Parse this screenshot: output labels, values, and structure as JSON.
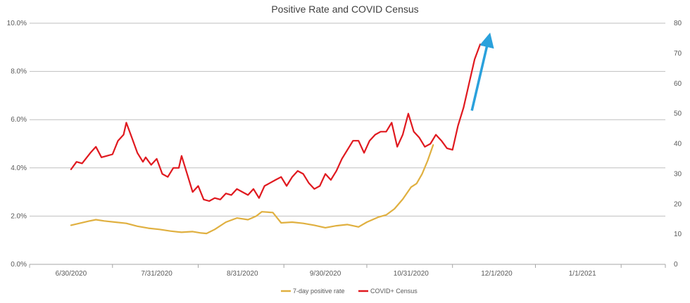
{
  "chart_data": {
    "type": "line",
    "title": "Positive Rate and COVID Census",
    "x_ticks": [
      "6/30/2020",
      "7/31/2020",
      "8/31/2020",
      "9/30/2020",
      "10/31/2020",
      "12/1/2020",
      "1/1/2021"
    ],
    "y_left": {
      "ticks": [
        "0.0%",
        "2.0%",
        "4.0%",
        "6.0%",
        "8.0%",
        "10.0%"
      ],
      "range": [
        0,
        10
      ]
    },
    "y_right": {
      "ticks": [
        "0",
        "10",
        "20",
        "30",
        "40",
        "50",
        "60",
        "70",
        "80"
      ],
      "range": [
        0,
        80
      ]
    },
    "grid": true,
    "legend_position": "bottom",
    "series": [
      {
        "name": "7-day positive rate",
        "axis": "left",
        "color": "#e0b040",
        "points": [
          [
            "2020-06-30",
            1.62
          ],
          [
            "2020-07-03",
            1.7
          ],
          [
            "2020-07-06",
            1.78
          ],
          [
            "2020-07-09",
            1.85
          ],
          [
            "2020-07-12",
            1.8
          ],
          [
            "2020-07-16",
            1.75
          ],
          [
            "2020-07-20",
            1.7
          ],
          [
            "2020-07-24",
            1.58
          ],
          [
            "2020-07-28",
            1.5
          ],
          [
            "2020-08-01",
            1.45
          ],
          [
            "2020-08-05",
            1.38
          ],
          [
            "2020-08-09",
            1.33
          ],
          [
            "2020-08-13",
            1.36
          ],
          [
            "2020-08-16",
            1.3
          ],
          [
            "2020-08-18",
            1.28
          ],
          [
            "2020-08-21",
            1.45
          ],
          [
            "2020-08-25",
            1.75
          ],
          [
            "2020-08-29",
            1.92
          ],
          [
            "2020-09-02",
            1.85
          ],
          [
            "2020-09-05",
            2.0
          ],
          [
            "2020-09-07",
            2.18
          ],
          [
            "2020-09-11",
            2.15
          ],
          [
            "2020-09-14",
            1.72
          ],
          [
            "2020-09-18",
            1.75
          ],
          [
            "2020-09-22",
            1.7
          ],
          [
            "2020-09-26",
            1.62
          ],
          [
            "2020-09-30",
            1.52
          ],
          [
            "2020-10-04",
            1.6
          ],
          [
            "2020-10-08",
            1.65
          ],
          [
            "2020-10-12",
            1.55
          ],
          [
            "2020-10-15",
            1.75
          ],
          [
            "2020-10-19",
            1.95
          ],
          [
            "2020-10-22",
            2.05
          ],
          [
            "2020-10-25",
            2.3
          ],
          [
            "2020-10-28",
            2.7
          ],
          [
            "2020-10-31",
            3.2
          ],
          [
            "2020-11-02",
            3.35
          ],
          [
            "2020-11-04",
            3.75
          ],
          [
            "2020-11-06",
            4.3
          ],
          [
            "2020-11-08",
            4.95
          ]
        ]
      },
      {
        "name": "COVID+ Census",
        "axis": "right",
        "color": "#e0191f",
        "points": [
          [
            "2020-06-30",
            31.5
          ],
          [
            "2020-07-02",
            34
          ],
          [
            "2020-07-04",
            33.5
          ],
          [
            "2020-07-07",
            37
          ],
          [
            "2020-07-09",
            39
          ],
          [
            "2020-07-11",
            35.5
          ],
          [
            "2020-07-13",
            36
          ],
          [
            "2020-07-15",
            36.5
          ],
          [
            "2020-07-17",
            41
          ],
          [
            "2020-07-19",
            43
          ],
          [
            "2020-07-20",
            47
          ],
          [
            "2020-07-22",
            42
          ],
          [
            "2020-07-24",
            37
          ],
          [
            "2020-07-26",
            34
          ],
          [
            "2020-07-27",
            35.5
          ],
          [
            "2020-07-29",
            33
          ],
          [
            "2020-07-31",
            35
          ],
          [
            "2020-08-02",
            30
          ],
          [
            "2020-08-04",
            29
          ],
          [
            "2020-08-06",
            32
          ],
          [
            "2020-08-08",
            32
          ],
          [
            "2020-08-09",
            36
          ],
          [
            "2020-08-11",
            30
          ],
          [
            "2020-08-13",
            24
          ],
          [
            "2020-08-15",
            26
          ],
          [
            "2020-08-17",
            21.5
          ],
          [
            "2020-08-19",
            21
          ],
          [
            "2020-08-21",
            22
          ],
          [
            "2020-08-23",
            21.5
          ],
          [
            "2020-08-25",
            23.5
          ],
          [
            "2020-08-27",
            23
          ],
          [
            "2020-08-29",
            25
          ],
          [
            "2020-08-31",
            24
          ],
          [
            "2020-09-02",
            23
          ],
          [
            "2020-09-04",
            25
          ],
          [
            "2020-09-06",
            22
          ],
          [
            "2020-09-08",
            26
          ],
          [
            "2020-09-10",
            27
          ],
          [
            "2020-09-12",
            28
          ],
          [
            "2020-09-14",
            29
          ],
          [
            "2020-09-16",
            26
          ],
          [
            "2020-09-18",
            29
          ],
          [
            "2020-09-20",
            31
          ],
          [
            "2020-09-22",
            30
          ],
          [
            "2020-09-24",
            27
          ],
          [
            "2020-09-26",
            25
          ],
          [
            "2020-09-28",
            26
          ],
          [
            "2020-09-30",
            30
          ],
          [
            "2020-10-02",
            28
          ],
          [
            "2020-10-04",
            31
          ],
          [
            "2020-10-06",
            35
          ],
          [
            "2020-10-08",
            38
          ],
          [
            "2020-10-10",
            41
          ],
          [
            "2020-10-12",
            41
          ],
          [
            "2020-10-14",
            37
          ],
          [
            "2020-10-16",
            41
          ],
          [
            "2020-10-18",
            43
          ],
          [
            "2020-10-20",
            44
          ],
          [
            "2020-10-22",
            44
          ],
          [
            "2020-10-24",
            47
          ],
          [
            "2020-10-26",
            39
          ],
          [
            "2020-10-28",
            43
          ],
          [
            "2020-10-30",
            50
          ],
          [
            "2020-11-01",
            44
          ],
          [
            "2020-11-03",
            42
          ],
          [
            "2020-11-05",
            39
          ],
          [
            "2020-11-07",
            40
          ],
          [
            "2020-11-09",
            43
          ],
          [
            "2020-11-11",
            41
          ],
          [
            "2020-11-13",
            38.5
          ],
          [
            "2020-11-15",
            38
          ],
          [
            "2020-11-17",
            46
          ],
          [
            "2020-11-19",
            52
          ],
          [
            "2020-11-21",
            60
          ],
          [
            "2020-11-23",
            68
          ],
          [
            "2020-11-25",
            73
          ]
        ]
      }
    ],
    "annotation": {
      "type": "arrow",
      "color": "#2aa1dc"
    }
  }
}
